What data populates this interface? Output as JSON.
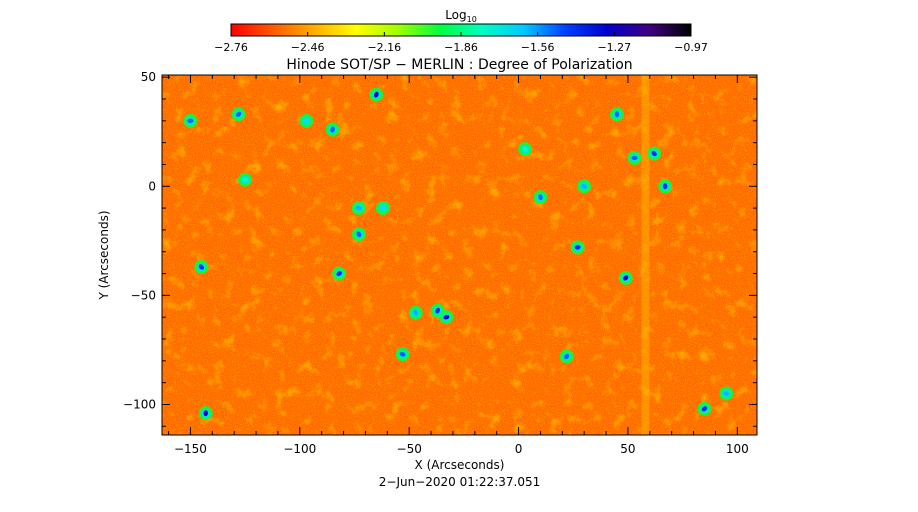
{
  "chart_data": {
    "type": "heatmap",
    "title": "Hinode SOT/SP − MERLIN : Degree of Polarization",
    "xlabel": "X (Arcseconds)",
    "ylabel": "Y (Arcseconds)",
    "xlim": [
      -163,
      109
    ],
    "ylim": [
      -114,
      51
    ],
    "x_ticks": [
      -150,
      -100,
      -50,
      0,
      50,
      100
    ],
    "x_tick_labels": [
      "−150",
      "−100",
      "−50",
      "0",
      "50",
      "100"
    ],
    "y_ticks": [
      50,
      0,
      -50,
      -100
    ],
    "y_tick_labels": [
      "50",
      "0",
      "−50",
      "−100"
    ],
    "timestamp": "2−Jun−2020 01:22:37.051",
    "colorbar": {
      "label": "Log",
      "label_sub": "10",
      "range": [
        -2.76,
        -0.97
      ],
      "tick_labels": [
        "−2.76",
        "−2.46",
        "−2.16",
        "−1.86",
        "−1.56",
        "−1.27",
        "−0.97"
      ],
      "colors": [
        "#ff0000",
        "#ff5a00",
        "#ffb000",
        "#ffff00",
        "#a0ff00",
        "#00ff40",
        "#00ffc0",
        "#00c8ff",
        "#0040ff",
        "#0000d0",
        "#400080",
        "#000000"
      ]
    },
    "background_color": "#ff6a00",
    "dominant_value": -2.7,
    "features": [
      {
        "x": -150,
        "y": 30,
        "value": -1.5
      },
      {
        "x": -145,
        "y": -37,
        "value": -1.4
      },
      {
        "x": -143,
        "y": -104,
        "value": -1.3
      },
      {
        "x": -128,
        "y": 33,
        "value": -1.5
      },
      {
        "x": -125,
        "y": 3,
        "value": -1.8
      },
      {
        "x": -97,
        "y": 30,
        "value": -1.7
      },
      {
        "x": -85,
        "y": 26,
        "value": -1.5
      },
      {
        "x": -82,
        "y": -40,
        "value": -1.4
      },
      {
        "x": -73,
        "y": -10,
        "value": -1.6
      },
      {
        "x": -73,
        "y": -22,
        "value": -1.5
      },
      {
        "x": -65,
        "y": 42,
        "value": -1.3
      },
      {
        "x": -62,
        "y": -10,
        "value": -1.7
      },
      {
        "x": -53,
        "y": -77,
        "value": -1.5
      },
      {
        "x": -47,
        "y": -58,
        "value": -1.6
      },
      {
        "x": -37,
        "y": -57,
        "value": -1.4
      },
      {
        "x": -33,
        "y": -60,
        "value": -1.3
      },
      {
        "x": 3,
        "y": 17,
        "value": -1.8
      },
      {
        "x": 10,
        "y": -5,
        "value": -1.5
      },
      {
        "x": 22,
        "y": -78,
        "value": -1.5
      },
      {
        "x": 27,
        "y": -28,
        "value": -1.4
      },
      {
        "x": 30,
        "y": 0,
        "value": -1.6
      },
      {
        "x": 45,
        "y": 33,
        "value": -1.5
      },
      {
        "x": 49,
        "y": -42,
        "value": -1.3
      },
      {
        "x": 53,
        "y": 13,
        "value": -1.5
      },
      {
        "x": 62,
        "y": 15,
        "value": -1.4
      },
      {
        "x": 67,
        "y": 0,
        "value": -1.4
      },
      {
        "x": 85,
        "y": -102,
        "value": -1.4
      },
      {
        "x": 95,
        "y": -95,
        "value": -1.6
      }
    ],
    "bright_lane_x": 58
  }
}
